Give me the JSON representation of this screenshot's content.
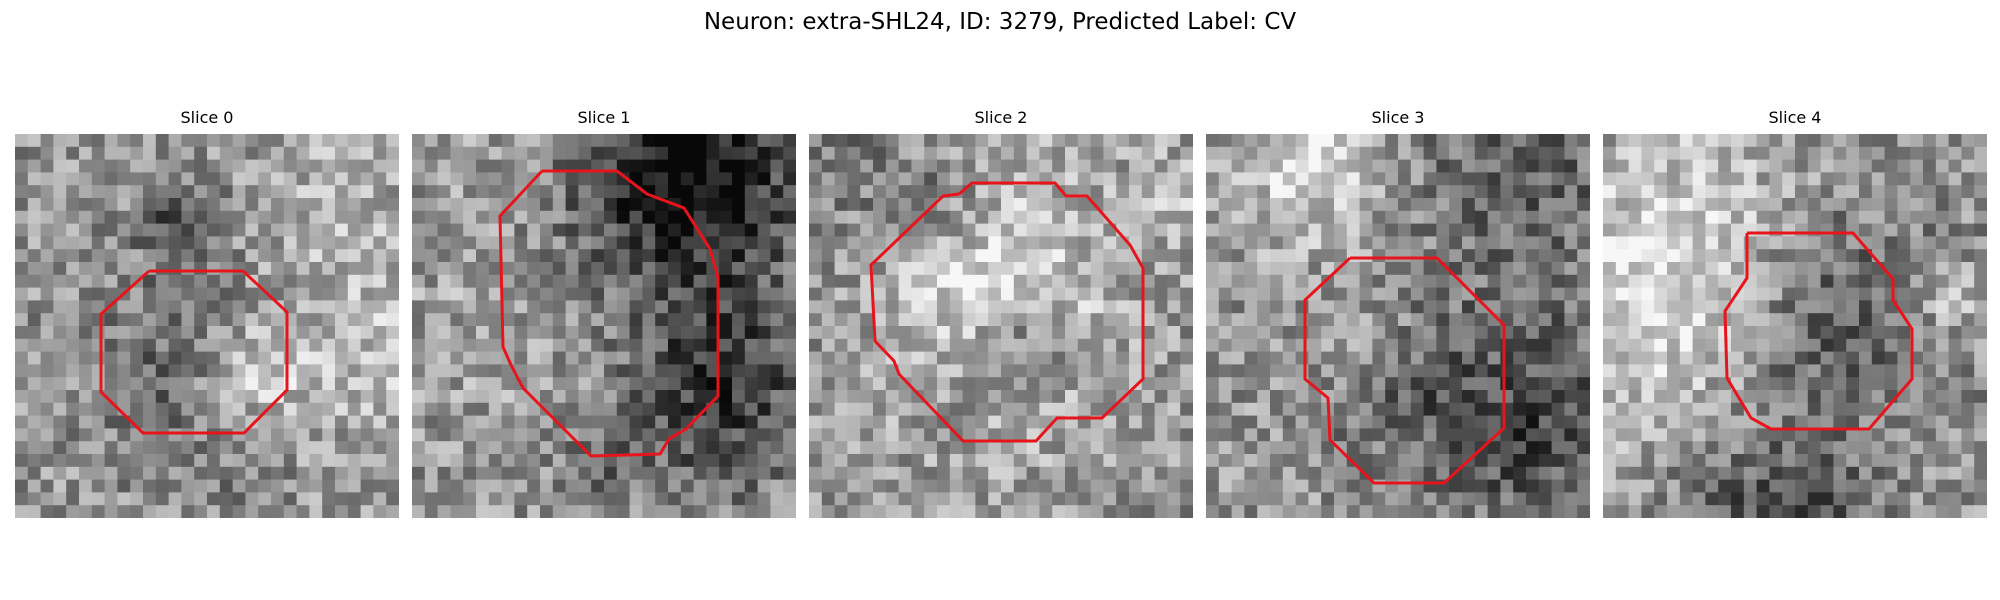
{
  "figure": {
    "title": "Neuron: extra-SHL24, ID: 3279, Predicted Label: CV"
  },
  "colors": {
    "contour": "#e41a1c",
    "background": "#ffffff"
  },
  "panels": [
    {
      "title": "Slice 0",
      "contour_color": "red"
    },
    {
      "title": "Slice 1",
      "contour_color": "red"
    },
    {
      "title": "Slice 2",
      "contour_color": "red"
    },
    {
      "title": "Slice 3",
      "contour_color": "red"
    },
    {
      "title": "Slice 4",
      "contour_color": "red"
    }
  ]
}
